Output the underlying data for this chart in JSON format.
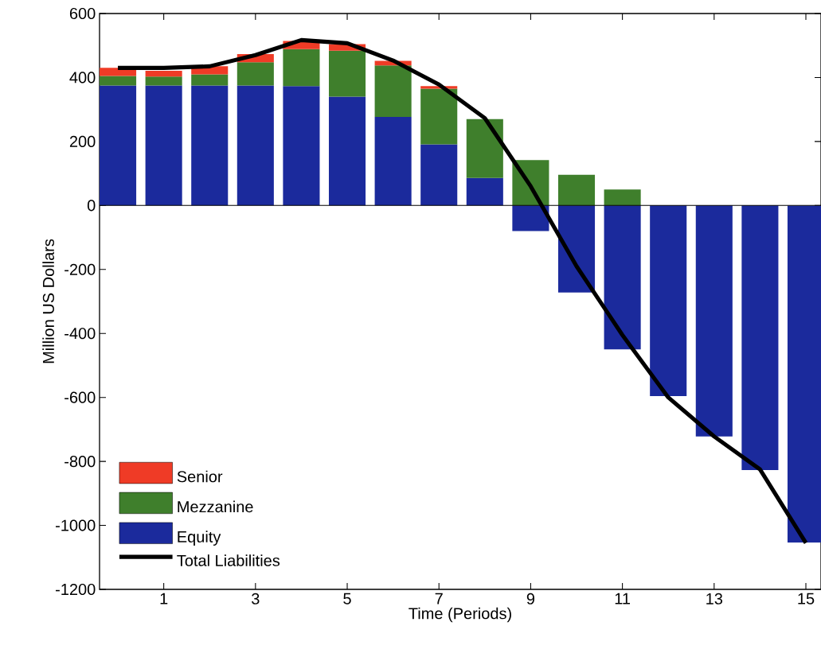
{
  "chart_data": {
    "type": "bar",
    "xlabel": "Time (Periods)",
    "ylabel": "Million US Dollars",
    "x": [
      0,
      1,
      2,
      3,
      4,
      5,
      6,
      7,
      8,
      9,
      10,
      11,
      12,
      13,
      14,
      15
    ],
    "stacked": true,
    "series": [
      {
        "name": "Equity",
        "color": "#1b2a9c",
        "values": [
          375,
          375,
          375,
          375,
          373,
          340,
          277,
          191,
          86,
          -80,
          -272,
          -450,
          -596,
          -722,
          -827,
          -1054
        ]
      },
      {
        "name": "Mezzanine",
        "color": "#3f7f2c",
        "values": [
          30,
          28,
          35,
          73,
          116,
          144,
          161,
          174,
          184,
          142,
          96,
          50,
          0,
          0,
          0,
          0
        ]
      },
      {
        "name": "Senior",
        "color": "#ef3b26",
        "values": [
          25,
          18,
          25,
          25,
          25,
          20,
          14,
          8,
          0,
          0,
          0,
          0,
          0,
          0,
          0,
          0
        ]
      },
      {
        "name": "Total Liabilities",
        "type": "line",
        "color": "#000000",
        "values": [
          430,
          430,
          435,
          470,
          517,
          507,
          453,
          378,
          273,
          60,
          -190,
          -405,
          -600,
          -722,
          -825,
          -1055
        ]
      }
    ],
    "xlim": [
      -0.4,
      15.33
    ],
    "ylim": [
      -1200,
      600
    ],
    "xticks": [
      1,
      3,
      5,
      7,
      9,
      11,
      13,
      15
    ],
    "yticks": [
      -1200,
      -1000,
      -800,
      -600,
      -400,
      -200,
      0,
      200,
      400,
      600
    ],
    "legend": "bottom left"
  }
}
